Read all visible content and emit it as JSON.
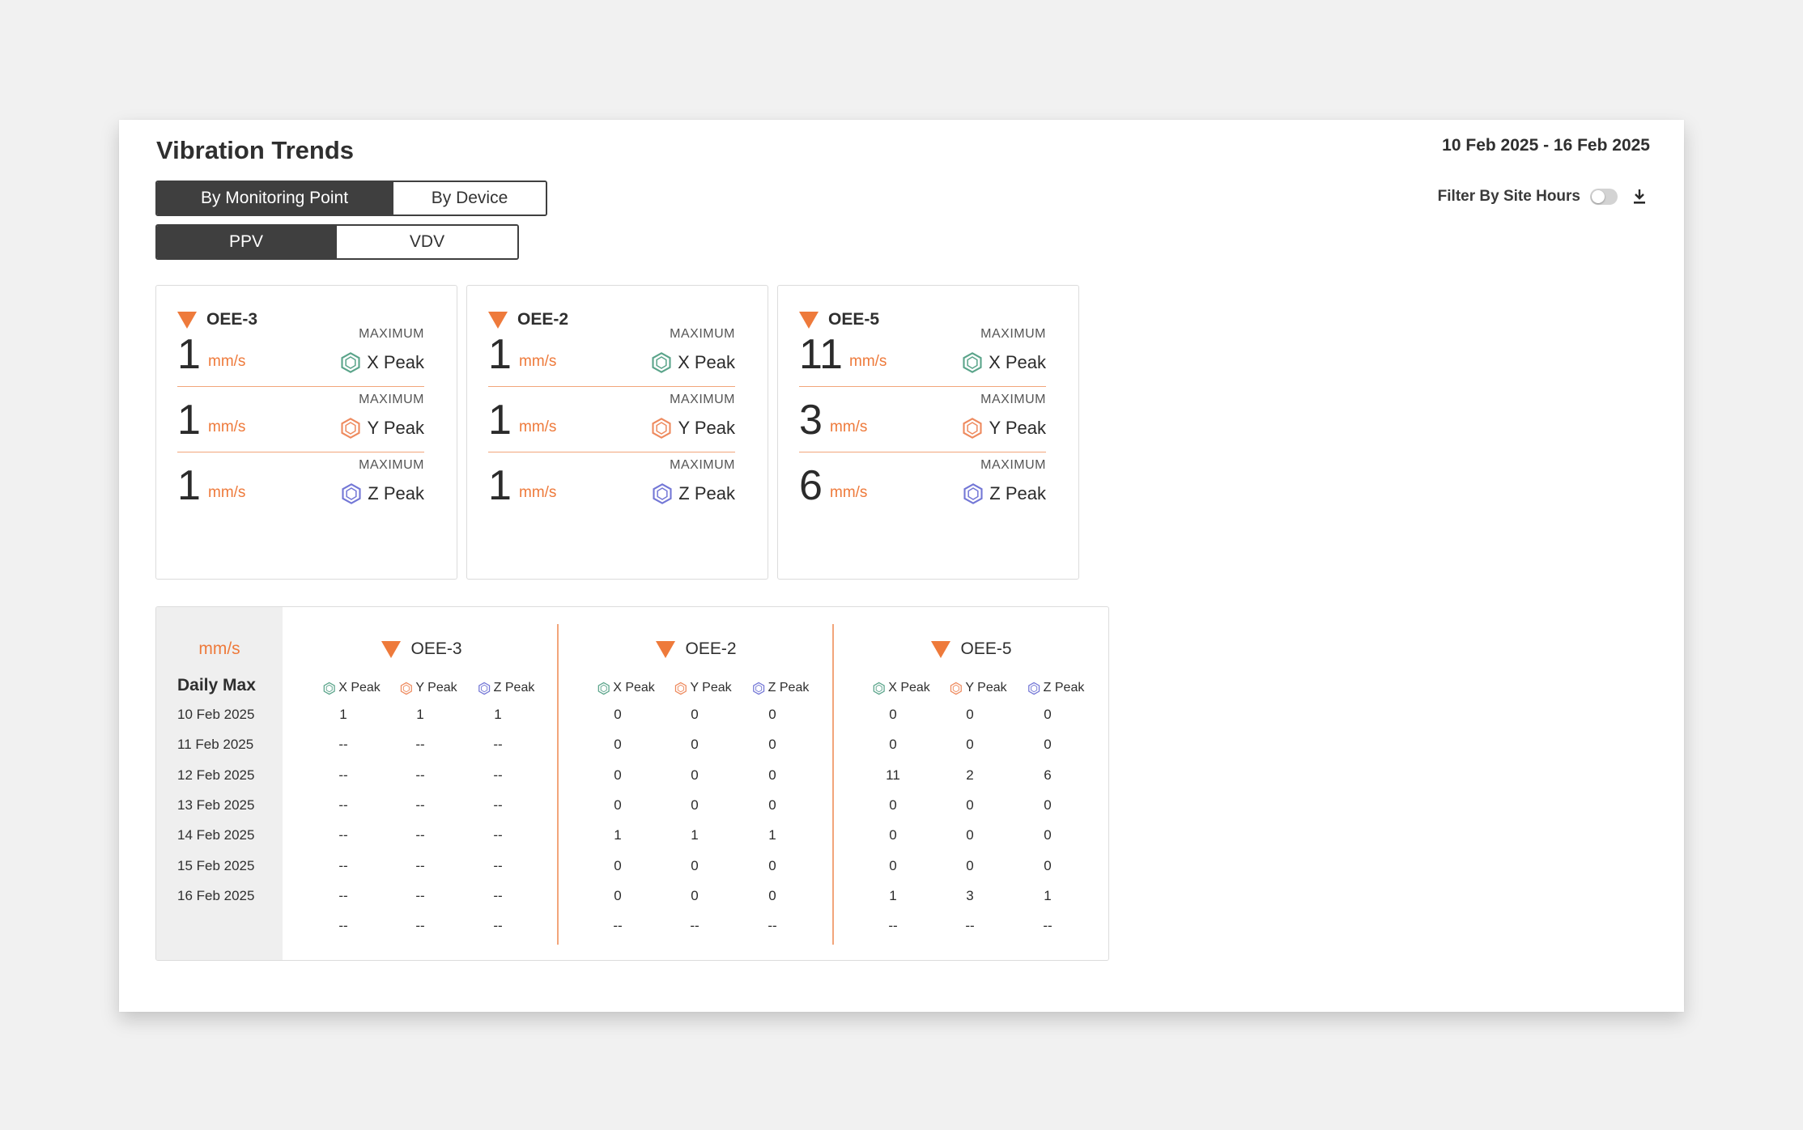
{
  "header": {
    "title": "Vibration Trends",
    "date_range": "10 Feb 2025 - 16 Feb 2025",
    "filter_label": "Filter By Site Hours",
    "filter_enabled": false
  },
  "view_tabs": [
    {
      "label": "By Monitoring Point",
      "active": true
    },
    {
      "label": "By Device",
      "active": false
    }
  ],
  "metric_tabs": [
    {
      "label": "PPV",
      "active": true
    },
    {
      "label": "VDV",
      "active": false
    }
  ],
  "colors": {
    "accent": "#ee7a3b",
    "x_peak": "#5aa48a",
    "y_peak": "#ee8a5e",
    "z_peak": "#7377d6",
    "active_tab": "#3f3f3f"
  },
  "cards": [
    {
      "name": "OEE-3",
      "metrics": [
        {
          "value": "1",
          "unit": "mm/s",
          "caption": "MAXIMUM",
          "peak": "X Peak"
        },
        {
          "value": "1",
          "unit": "mm/s",
          "caption": "MAXIMUM",
          "peak": "Y Peak"
        },
        {
          "value": "1",
          "unit": "mm/s",
          "caption": "MAXIMUM",
          "peak": "Z Peak"
        }
      ]
    },
    {
      "name": "OEE-2",
      "metrics": [
        {
          "value": "1",
          "unit": "mm/s",
          "caption": "MAXIMUM",
          "peak": "X Peak"
        },
        {
          "value": "1",
          "unit": "mm/s",
          "caption": "MAXIMUM",
          "peak": "Y Peak"
        },
        {
          "value": "1",
          "unit": "mm/s",
          "caption": "MAXIMUM",
          "peak": "Z Peak"
        }
      ]
    },
    {
      "name": "OEE-5",
      "metrics": [
        {
          "value": "11",
          "unit": "mm/s",
          "caption": "MAXIMUM",
          "peak": "X Peak"
        },
        {
          "value": "3",
          "unit": "mm/s",
          "caption": "MAXIMUM",
          "peak": "Y Peak"
        },
        {
          "value": "6",
          "unit": "mm/s",
          "caption": "MAXIMUM",
          "peak": "Z Peak"
        }
      ]
    }
  ],
  "table": {
    "unit": "mm/s",
    "row_header": "Daily Max",
    "columns": [
      "X Peak",
      "Y Peak",
      "Z Peak"
    ],
    "dates": [
      "10 Feb 2025",
      "11 Feb 2025",
      "12 Feb 2025",
      "13 Feb 2025",
      "14 Feb 2025",
      "15 Feb 2025",
      "16 Feb 2025",
      ""
    ],
    "groups": [
      {
        "name": "OEE-3",
        "rows": [
          [
            "1",
            "1",
            "1"
          ],
          [
            "--",
            "--",
            "--"
          ],
          [
            "--",
            "--",
            "--"
          ],
          [
            "--",
            "--",
            "--"
          ],
          [
            "--",
            "--",
            "--"
          ],
          [
            "--",
            "--",
            "--"
          ],
          [
            "--",
            "--",
            "--"
          ],
          [
            "--",
            "--",
            "--"
          ]
        ]
      },
      {
        "name": "OEE-2",
        "rows": [
          [
            "0",
            "0",
            "0"
          ],
          [
            "0",
            "0",
            "0"
          ],
          [
            "0",
            "0",
            "0"
          ],
          [
            "0",
            "0",
            "0"
          ],
          [
            "1",
            "1",
            "1"
          ],
          [
            "0",
            "0",
            "0"
          ],
          [
            "0",
            "0",
            "0"
          ],
          [
            "--",
            "--",
            "--"
          ]
        ]
      },
      {
        "name": "OEE-5",
        "rows": [
          [
            "0",
            "0",
            "0"
          ],
          [
            "0",
            "0",
            "0"
          ],
          [
            "11",
            "2",
            "6"
          ],
          [
            "0",
            "0",
            "0"
          ],
          [
            "0",
            "0",
            "0"
          ],
          [
            "0",
            "0",
            "0"
          ],
          [
            "1",
            "3",
            "1"
          ],
          [
            "--",
            "--",
            "--"
          ]
        ]
      }
    ]
  }
}
